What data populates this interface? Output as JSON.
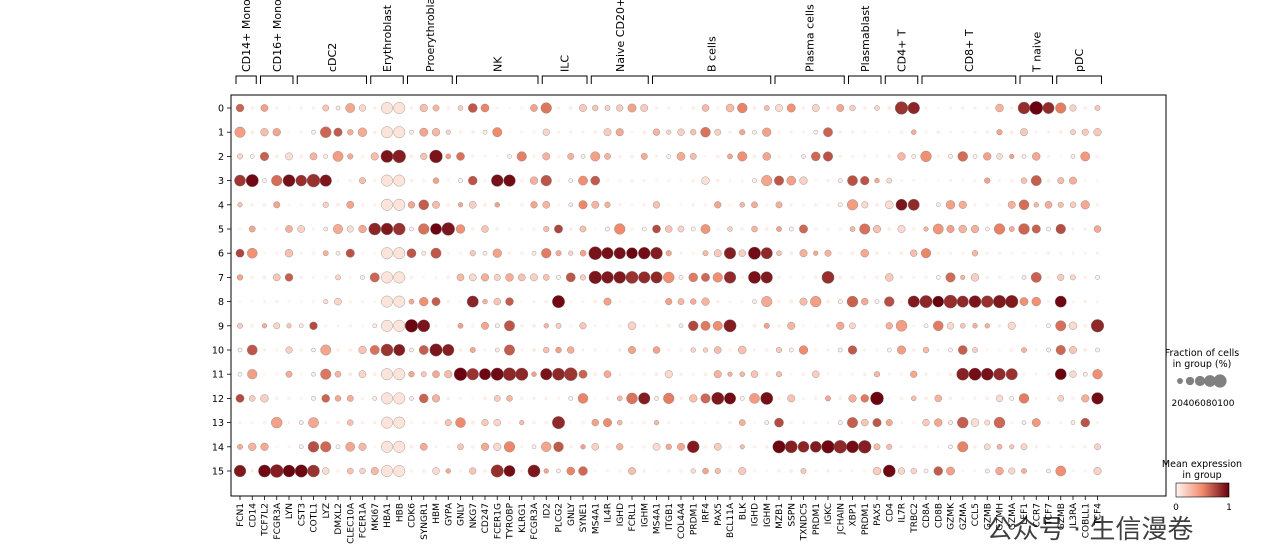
{
  "chart_data": {
    "type": "dotplot",
    "colormap": "Reds",
    "color_low": "#fff5f0",
    "color_mid": "#f08a6c",
    "color_high": "#67000d",
    "clusters": [
      "0",
      "1",
      "2",
      "3",
      "4",
      "5",
      "6",
      "7",
      "8",
      "9",
      "10",
      "11",
      "12",
      "13",
      "14",
      "15"
    ],
    "genes": [
      "FCN1",
      "CD14",
      "TCF7L2",
      "FCGR3A",
      "LYN",
      "CST3",
      "COTL1",
      "LYZ",
      "DMXL2",
      "CLEC10A",
      "FCER1A",
      "MKI67",
      "HBA1",
      "HBB",
      "CDK6",
      "SYNGR1",
      "HBM",
      "GYPA",
      "GNLY",
      "NKG7",
      "CD247",
      "FCER1G",
      "TYROBP",
      "KLRG1",
      "FCGR3A",
      "ID2",
      "PLCG2",
      "GNLY",
      "SYNE1",
      "MS4A1",
      "IL4R",
      "IGHD",
      "FCRL1",
      "IGHM",
      "MS4A1",
      "ITGB1",
      "COL4A4",
      "PRDM1",
      "IRF4",
      "PAX5",
      "BCL11A",
      "BLK",
      "IGHD",
      "IGHM",
      "MZB1",
      "SSPN",
      "TXNDC5",
      "PRDM1",
      "IGKC",
      "JCHAIN",
      "XBP1",
      "PRDM1",
      "PAX5",
      "CD4",
      "IL7R",
      "TRBC2",
      "CD8A",
      "CD8B",
      "GZMK",
      "GZMA",
      "CCL5",
      "GZMB",
      "GZMH",
      "GZMA",
      "LEF1",
      "CCR7",
      "TCF7",
      "GZMB",
      "IL3RA",
      "COBLL1",
      "TCF4"
    ],
    "groups": [
      {
        "label": "CD14+ Mono",
        "start": 0,
        "end": 1
      },
      {
        "label": "CD16+ Mono",
        "start": 2,
        "end": 4
      },
      {
        "label": "cDC2",
        "start": 5,
        "end": 10
      },
      {
        "label": "Erythroblast",
        "start": 11,
        "end": 13
      },
      {
        "label": "Proerythroblast",
        "start": 14,
        "end": 17
      },
      {
        "label": "NK",
        "start": 18,
        "end": 24
      },
      {
        "label": "ILC",
        "start": 25,
        "end": 28
      },
      {
        "label": "Naive CD20+ B",
        "start": 29,
        "end": 33
      },
      {
        "label": "B cells",
        "start": 34,
        "end": 43
      },
      {
        "label": "Plasma cells",
        "start": 44,
        "end": 49
      },
      {
        "label": "Plasmablast",
        "start": 50,
        "end": 52
      },
      {
        "label": "CD4+ T",
        "start": 53,
        "end": 55
      },
      {
        "label": "CD8+ T",
        "start": 56,
        "end": 63
      },
      {
        "label": "T naive",
        "start": 64,
        "end": 66
      },
      {
        "label": "pDC",
        "start": 67,
        "end": 70
      }
    ],
    "high_expression": [
      {
        "cluster": "0",
        "genes": [
          "IL7R",
          "TRBC2",
          "LEF1",
          "CCR7",
          "TCF7"
        ]
      },
      {
        "cluster": "2",
        "genes": [
          "HBA1",
          "HBB",
          "HBM"
        ]
      },
      {
        "cluster": "3",
        "genes": [
          "FCN1",
          "CD14",
          "LYN",
          "CST3",
          "COTL1",
          "LYZ",
          "FCER1G",
          "TYROBP"
        ]
      },
      {
        "cluster": "4",
        "genes": [
          "IL7R",
          "TRBC2"
        ]
      },
      {
        "cluster": "5",
        "genes": [
          "MKI67",
          "HBA1",
          "HBB",
          "HBM",
          "GYPA"
        ]
      },
      {
        "cluster": "6",
        "genes": [
          "MS4A1",
          "IL4R",
          "IGHD",
          "FCRL1",
          "IGHM",
          "BCL11A",
          "IGHD",
          "IGHM"
        ]
      },
      {
        "cluster": "7",
        "genes": [
          "MS4A1",
          "IL4R",
          "IGHD",
          "FCRL1",
          "IGHM",
          "BCL11A",
          "IGHD",
          "IGHM",
          "IGKC"
        ]
      },
      {
        "cluster": "8",
        "genes": [
          "NKG7",
          "PLCG2",
          "TRBC2",
          "CD8A",
          "CD8B",
          "GZMK",
          "GZMA",
          "CCL5",
          "GZMB",
          "GZMH",
          "GZMA"
        ]
      },
      {
        "cluster": "9",
        "genes": [
          "CDK6",
          "SYNGR1",
          "BCL11A",
          "TCF4"
        ]
      },
      {
        "cluster": "10",
        "genes": [
          "HBA1",
          "HBB",
          "HBM",
          "GYPA"
        ]
      },
      {
        "cluster": "11",
        "genes": [
          "GNLY",
          "NKG7",
          "CD247",
          "FCER1G",
          "TYROBP",
          "KLRG1",
          "ID2",
          "PLCG2",
          "GNLY",
          "CCL5",
          "GZMB",
          "GZMH",
          "GZMA",
          "GZMB"
        ]
      },
      {
        "cluster": "12",
        "genes": [
          "IGHM",
          "PAX5",
          "BCL11A",
          "IGHM",
          "PAX5",
          "TCF4"
        ]
      },
      {
        "cluster": "13",
        "genes": [
          "PLCG2"
        ]
      },
      {
        "cluster": "14",
        "genes": [
          "MZB1",
          "SSPN",
          "TXNDC5",
          "PRDM1",
          "IGKC",
          "JCHAIN",
          "XBP1"
        ]
      },
      {
        "cluster": "15",
        "genes": [
          "FCN1",
          "TCF7L2",
          "FCGR3A",
          "LYN",
          "CST3",
          "COTL1",
          "FCER1G",
          "TYROBP",
          "FCGR3A",
          "CD4"
        ]
      }
    ],
    "xlabel": "",
    "ylabel": "",
    "legend": {
      "size_title_line1": "Fraction of cells",
      "size_title_line2": "in group (%)",
      "size_values": [
        20,
        40,
        60,
        80,
        100
      ],
      "size_tick_text": "20406080100",
      "color_title_line1": "Mean expression",
      "color_title_line2": "in group",
      "color_min": "0",
      "color_max": "1"
    }
  },
  "watermark": {
    "text": "公众号 · 生信漫卷"
  }
}
